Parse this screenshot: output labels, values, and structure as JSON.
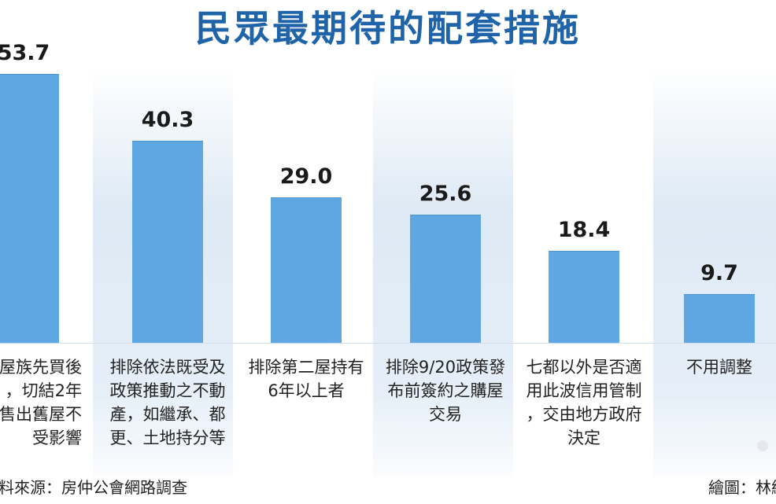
{
  "chart_data": {
    "type": "bar",
    "title": "民眾最期待的配套措施",
    "categories": [
      "屋族先買後\n，切結2年\n售出舊屋不\n受影響",
      "排除依法既受及\n政策推動之不動\n產，如繼承、都\n更、土地持分等",
      "排除第二屋持有\n6年以上者",
      "排除9/20政策發\n布前簽約之購屋\n交易",
      "七都以外是否適\n用此波信用管制\n，交由地方政府\n決定",
      "不用調整"
    ],
    "values": [
      53.7,
      40.3,
      29.0,
      25.6,
      18.4,
      9.7
    ],
    "value_labels": [
      "53.7",
      "40.3",
      "29.0",
      "25.6",
      "18.4",
      "9.7"
    ],
    "ylim": [
      0,
      53.7
    ],
    "grid": false,
    "bar_color": "#5ea7e2",
    "title_color": "#1f64a8"
  },
  "footer": {
    "source": "料來源：房仲公會網路調查",
    "credit": "繪圖：林綿"
  }
}
